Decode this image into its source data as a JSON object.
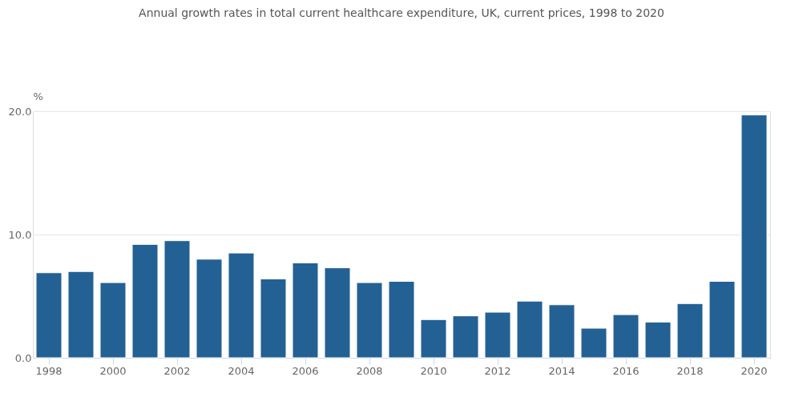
{
  "chart_data": {
    "type": "bar",
    "title": "Annual growth rates in total current healthcare expenditure, UK, current prices, 1998 to 2020",
    "ylabel": "%",
    "categories": [
      "1998",
      null,
      "2000",
      null,
      "2002",
      null,
      "2004",
      null,
      "2006",
      null,
      "2008",
      null,
      "2010",
      null,
      "2012",
      null,
      "2014",
      null,
      "2016",
      null,
      "2018",
      null,
      "2020"
    ],
    "values": [
      6.9,
      7.0,
      6.1,
      9.2,
      9.5,
      8.0,
      8.5,
      6.4,
      7.7,
      7.3,
      6.1,
      6.2,
      3.1,
      3.4,
      3.7,
      4.6,
      4.3,
      2.4,
      3.5,
      2.9,
      4.4,
      6.2,
      19.7
    ],
    "color": "#236094",
    "ylim": [
      0,
      20
    ],
    "yticks": [
      {
        "value": 0,
        "label": "0.0"
      },
      {
        "value": 10,
        "label": "10.0"
      },
      {
        "value": 20,
        "label": "20.0"
      }
    ],
    "grid": "y"
  }
}
